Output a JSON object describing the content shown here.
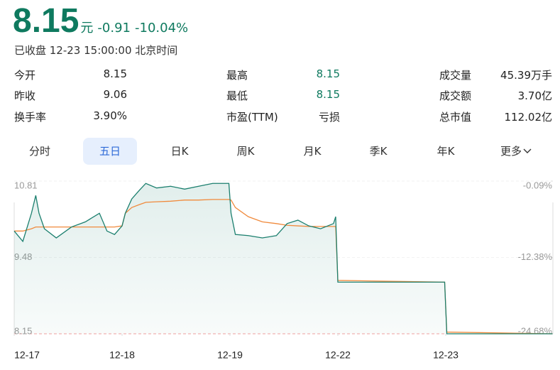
{
  "quote": {
    "price": "8.15",
    "unit": "元",
    "change": "-0.91",
    "change_pct": "-10.04%",
    "status": "已收盘 12-23 15:00:00 北京时间"
  },
  "stats": [
    [
      {
        "label": "今开",
        "value": "8.15"
      },
      {
        "label": "最高",
        "value": "8.15"
      },
      {
        "label": "成交量",
        "value": "45.39万手"
      }
    ],
    [
      {
        "label": "昨收",
        "value": "9.06"
      },
      {
        "label": "最低",
        "value": "8.15"
      },
      {
        "label": "成交额",
        "value": "3.70亿"
      }
    ],
    [
      {
        "label": "换手率",
        "value": "3.90%"
      },
      {
        "label": "市盈(TTM)",
        "value": "亏损"
      },
      {
        "label": "总市值",
        "value": "112.02亿"
      }
    ]
  ],
  "tabs": [
    "分时",
    "五日",
    "日K",
    "周K",
    "月K",
    "季K",
    "年K",
    "更多"
  ],
  "selected_tab": 1,
  "chart_data": {
    "type": "line",
    "x": [
      0,
      0.08,
      0.16,
      0.2,
      0.23,
      0.28,
      0.39,
      0.53,
      0.66,
      0.79,
      0.86,
      0.93,
      1.0,
      1.03,
      1.09,
      1.16,
      1.22,
      1.32,
      1.45,
      1.58,
      1.71,
      1.84,
      1.99,
      2.01,
      2.05,
      2.17,
      2.3,
      2.43,
      2.53,
      2.63,
      2.73,
      2.84,
      2.96,
      2.98,
      3.0,
      3.99,
      4.01,
      4.99
    ],
    "xlim": [
      0,
      5
    ],
    "xticks": [
      {
        "value": 0,
        "label": "12-17"
      },
      {
        "value": 1,
        "label": "12-18"
      },
      {
        "value": 2,
        "label": "12-19"
      },
      {
        "value": 3,
        "label": "12-22"
      },
      {
        "value": 4,
        "label": "12-23"
      }
    ],
    "ylim": [
      8.15,
      10.81
    ],
    "yticks": [
      {
        "value": 10.81,
        "label": "10.81"
      },
      {
        "value": 9.48,
        "label": "9.48"
      },
      {
        "value": 8.15,
        "label": "8.15"
      }
    ],
    "y2lim": [
      -24.68,
      -0.09
    ],
    "y2ticks": [
      {
        "value": -0.09,
        "label": "-0.09%"
      },
      {
        "value": -12.38,
        "label": "-12.38%"
      },
      {
        "value": -24.68,
        "label": "-24.68%"
      }
    ],
    "series": [
      {
        "color": "#1b7f6e",
        "values": [
          9.94,
          9.76,
          10.25,
          10.56,
          10.25,
          9.98,
          9.82,
          10.01,
          10.1,
          10.25,
          9.94,
          9.88,
          10.03,
          10.25,
          10.5,
          10.65,
          10.77,
          10.69,
          10.72,
          10.67,
          10.72,
          10.77,
          10.77,
          10.25,
          9.88,
          9.86,
          9.82,
          9.86,
          10.07,
          10.13,
          10.03,
          9.98,
          10.07,
          10.19,
          9.05,
          9.05,
          8.15,
          8.15
        ]
      },
      {
        "color": "#f08a3c",
        "values": [
          9.94,
          9.94,
          9.98,
          10.01,
          10.01,
          10.01,
          10.01,
          10.01,
          10.01,
          10.01,
          10.01,
          10.01,
          10.03,
          10.25,
          10.35,
          10.4,
          10.44,
          10.45,
          10.46,
          10.48,
          10.48,
          10.49,
          10.49,
          10.48,
          10.35,
          10.19,
          10.1,
          10.07,
          10.04,
          10.03,
          10.02,
          10.02,
          10.02,
          10.02,
          9.08,
          9.05,
          8.18,
          8.15
        ]
      }
    ]
  }
}
